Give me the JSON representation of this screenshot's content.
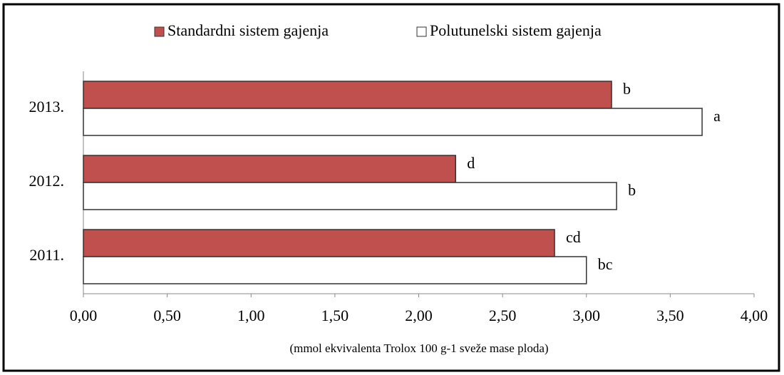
{
  "chart_data": {
    "type": "hbar",
    "categories": [
      "2013.",
      "2012.",
      "2011."
    ],
    "series": [
      {
        "name": "Standardni sistem gajenja",
        "color": "#c0504d",
        "values": [
          3.15,
          2.22,
          2.81
        ],
        "labels": [
          "b",
          "d",
          "cd"
        ]
      },
      {
        "name": "Polutunelski sistem gajenja",
        "color": "#ffffff",
        "values": [
          3.69,
          3.18,
          3.0
        ],
        "labels": [
          "a",
          "b",
          "bc"
        ]
      }
    ],
    "x_label": "(mmol ekvivalenta Trolox 100 g-1  sveže mase ploda)",
    "xlim": [
      0,
      4
    ],
    "xticks": [
      {
        "value": 0,
        "label": "0,00"
      },
      {
        "value": 0.5,
        "label": "0,50"
      },
      {
        "value": 1,
        "label": "1,00"
      },
      {
        "value": 1.5,
        "label": "1,50"
      },
      {
        "value": 2,
        "label": "2,00"
      },
      {
        "value": 2.5,
        "label": "2,50"
      },
      {
        "value": 3,
        "label": "3,00"
      },
      {
        "value": 3.5,
        "label": "3,50"
      },
      {
        "value": 4,
        "label": "4,00"
      }
    ],
    "legend": "top"
  }
}
